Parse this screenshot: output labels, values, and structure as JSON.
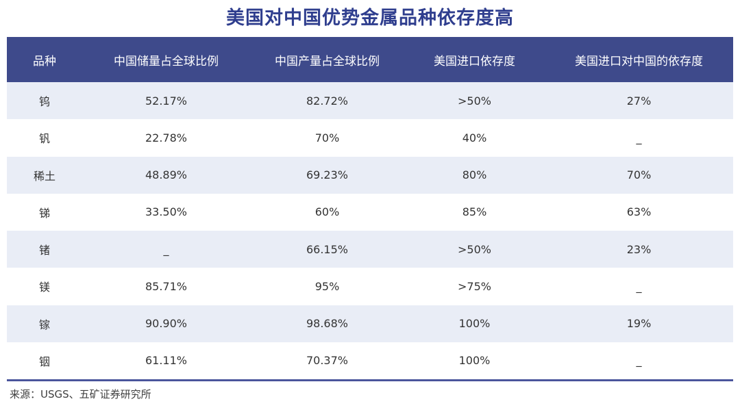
{
  "title": "美国对中国优势金属品种依存度高",
  "source": "来源：USGS、五矿证券研究所",
  "colors": {
    "title_text": "#2F3E8E",
    "header_bg": "#3E4A8B",
    "header_text": "#FFFFFF",
    "row_alt_bg": "#E9EDF6",
    "row_bg": "#FFFFFF",
    "body_text": "#333333",
    "bottom_border": "#4A559C"
  },
  "chart_data": {
    "type": "table",
    "title": "美国对中国优势金属品种依存度高",
    "columns": [
      "品种",
      "中国储量占全球比例",
      "中国产量占全球比例",
      "美国进口依存度",
      "美国进口对中国的依存度"
    ],
    "rows": [
      [
        "钨",
        "52.17%",
        "82.72%",
        ">50%",
        "27%"
      ],
      [
        "钒",
        "22.78%",
        "70%",
        "40%",
        "_"
      ],
      [
        "稀土",
        "48.89%",
        "69.23%",
        "80%",
        "70%"
      ],
      [
        "锑",
        "33.50%",
        "60%",
        "85%",
        "63%"
      ],
      [
        "锗",
        "_",
        "66.15%",
        ">50%",
        "23%"
      ],
      [
        "镁",
        "85.71%",
        "95%",
        ">75%",
        "_"
      ],
      [
        "镓",
        "90.90%",
        "98.68%",
        "100%",
        "19%"
      ],
      [
        "铟",
        "61.11%",
        "70.37%",
        "100%",
        "_"
      ]
    ],
    "layout": {
      "zebra_striping": true,
      "first_row_shaded": true,
      "header_position": "top"
    }
  }
}
